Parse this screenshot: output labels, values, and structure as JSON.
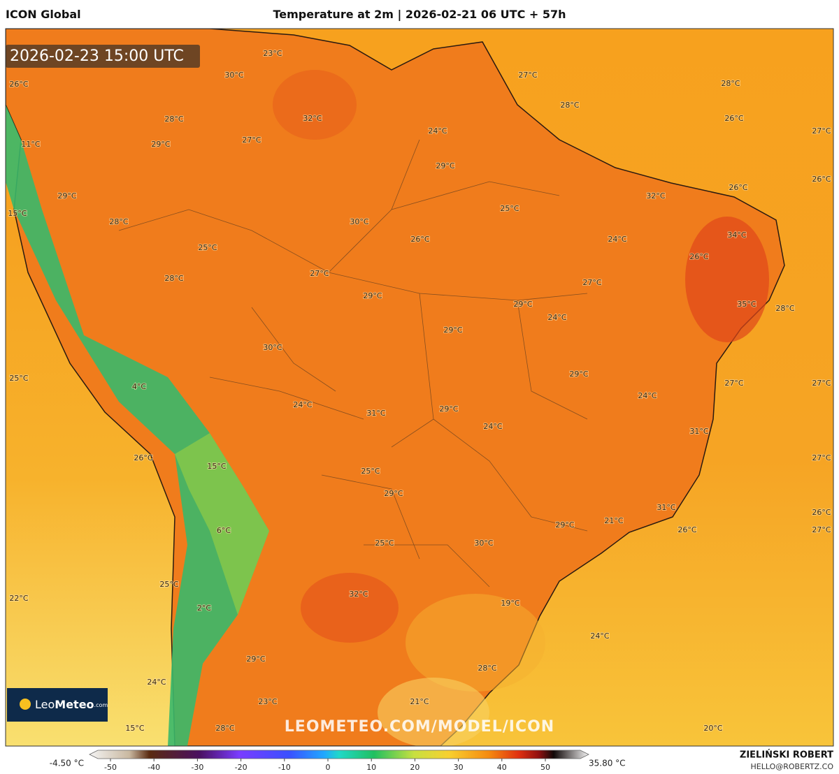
{
  "header": {
    "title": "ICON Global",
    "subtitle": "Temperature at 2m | 2026-02-21 06 UTC + 57h"
  },
  "timestamp": "2026-02-23 15:00 UTC",
  "map_labels": [
    "23°C",
    "30°C",
    "26°C",
    "27°C",
    "28°C",
    "28°C",
    "32°C",
    "26°C",
    "28°C",
    "27°C",
    "24°C",
    "27°C",
    "29°C",
    "11°C",
    "29°C",
    "26°C",
    "26°C",
    "32°C",
    "29°C",
    "15°C",
    "25°C",
    "28°C",
    "30°C",
    "26°C",
    "24°C",
    "34°C",
    "25°C",
    "26°C",
    "27°C",
    "28°C",
    "27°C",
    "29°C",
    "29°C",
    "35°C",
    "28°C",
    "24°C",
    "29°C",
    "30°C",
    "29°C",
    "25°C",
    "27°C",
    "27°C",
    "4°C",
    "24°C",
    "24°C",
    "29°C",
    "31°C",
    "24°C",
    "31°C",
    "26°C",
    "27°C",
    "15°C",
    "25°C",
    "29°C",
    "31°C",
    "26°C",
    "21°C",
    "29°C",
    "6°C",
    "26°C",
    "27°C",
    "30°C",
    "25°C",
    "25°C",
    "32°C",
    "22°C",
    "19°C",
    "2°C",
    "24°C",
    "29°C",
    "28°C",
    "24°C",
    "23°C",
    "21°C",
    "15°C",
    "28°C",
    "20°C"
  ],
  "watermark": "LEOMETEO.COM/MODEL/ICON",
  "logo": {
    "brand": "Leo",
    "brand_bold": "Meteo",
    "suffix": ".com"
  },
  "legend": {
    "min_label": "-4.50 °C",
    "max_label": "35.80 °C",
    "ticks": [
      -50,
      -40,
      -30,
      -20,
      -10,
      0,
      10,
      20,
      30,
      40,
      50
    ]
  },
  "credit": {
    "name": "ZIELIŃSKI ROBERT",
    "email": "HELLO@ROBERTZ.CO"
  }
}
